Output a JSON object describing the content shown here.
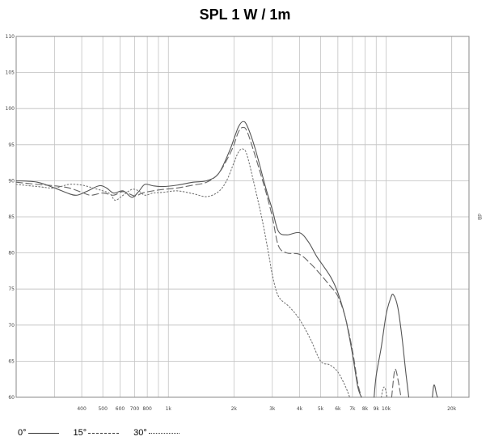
{
  "chart_data": {
    "type": "line",
    "title": "SPL 1 W / 1m",
    "xlabel": "",
    "ylabel": "",
    "side_label": "dB",
    "x_scale": "log",
    "xlim": [
      200,
      24000
    ],
    "ylim": [
      60,
      110
    ],
    "yticks": [
      60,
      65,
      70,
      75,
      80,
      85,
      90,
      95,
      100,
      105,
      110
    ],
    "xticks": [
      {
        "value": 400,
        "label": "400"
      },
      {
        "value": 500,
        "label": "500"
      },
      {
        "value": 600,
        "label": "600"
      },
      {
        "value": 700,
        "label": "700"
      },
      {
        "value": 800,
        "label": "800"
      },
      {
        "value": 1000,
        "label": "1k"
      },
      {
        "value": 2000,
        "label": "2k"
      },
      {
        "value": 3000,
        "label": "3k"
      },
      {
        "value": 4000,
        "label": "4k"
      },
      {
        "value": 5000,
        "label": "5k"
      },
      {
        "value": 6000,
        "label": "6k"
      },
      {
        "value": 7000,
        "label": "7k"
      },
      {
        "value": 8000,
        "label": "8k"
      },
      {
        "value": 9000,
        "label": "9k"
      },
      {
        "value": 10000,
        "label": "10k"
      },
      {
        "value": 20000,
        "label": "20k"
      }
    ],
    "grid": true,
    "series": [
      {
        "name": "0°",
        "style": "solid",
        "color": "#555555",
        "segments": [
          [
            [
              200,
              90.0
            ],
            [
              250,
              89.8
            ],
            [
              300,
              89.0
            ],
            [
              350,
              88.2
            ],
            [
              380,
              88.0
            ],
            [
              420,
              88.5
            ],
            [
              480,
              89.3
            ],
            [
              520,
              89.0
            ],
            [
              560,
              88.3
            ],
            [
              620,
              88.6
            ],
            [
              680,
              87.7
            ],
            [
              730,
              88.5
            ],
            [
              780,
              89.5
            ],
            [
              850,
              89.3
            ],
            [
              950,
              89.2
            ],
            [
              1100,
              89.4
            ],
            [
              1300,
              89.8
            ],
            [
              1500,
              90.0
            ],
            [
              1700,
              91.0
            ],
            [
              1900,
              94.0
            ],
            [
              2000,
              95.8
            ],
            [
              2100,
              97.5
            ],
            [
              2200,
              98.2
            ],
            [
              2300,
              97.6
            ],
            [
              2500,
              94.5
            ],
            [
              2800,
              89.0
            ],
            [
              3000,
              86.0
            ],
            [
              3200,
              83.0
            ],
            [
              3500,
              82.5
            ],
            [
              4000,
              82.8
            ],
            [
              4400,
              81.5
            ],
            [
              4800,
              79.5
            ],
            [
              5200,
              78.0
            ],
            [
              5600,
              76.5
            ],
            [
              6000,
              74.5
            ],
            [
              6500,
              71.0
            ],
            [
              7000,
              66.0
            ],
            [
              7400,
              61.5
            ],
            [
              7700,
              60.0
            ]
          ],
          [
            [
              8800,
              60.0
            ],
            [
              9000,
              63.0
            ],
            [
              9500,
              67.0
            ],
            [
              10000,
              71.5
            ],
            [
              10500,
              73.8
            ],
            [
              10800,
              74.2
            ],
            [
              11300,
              72.5
            ],
            [
              11800,
              68.5
            ],
            [
              12300,
              63.5
            ],
            [
              12700,
              60.0
            ]
          ],
          [
            [
              16300,
              60.0
            ],
            [
              16500,
              61.5
            ],
            [
              16700,
              61.6
            ],
            [
              17000,
              60.5
            ],
            [
              17200,
              60.0
            ]
          ]
        ]
      },
      {
        "name": "15°",
        "style": "dashed",
        "color": "#666666",
        "segments": [
          [
            [
              200,
              89.8
            ],
            [
              250,
              89.5
            ],
            [
              300,
              89.3
            ],
            [
              350,
              89.0
            ],
            [
              400,
              88.4
            ],
            [
              440,
              88.0
            ],
            [
              500,
              88.3
            ],
            [
              560,
              88.0
            ],
            [
              620,
              88.5
            ],
            [
              700,
              87.9
            ],
            [
              760,
              88.3
            ],
            [
              850,
              88.6
            ],
            [
              950,
              88.8
            ],
            [
              1100,
              89.0
            ],
            [
              1300,
              89.4
            ],
            [
              1500,
              89.8
            ],
            [
              1700,
              91.0
            ],
            [
              1900,
              93.5
            ],
            [
              2000,
              95.0
            ],
            [
              2100,
              96.8
            ],
            [
              2200,
              97.4
            ],
            [
              2300,
              96.8
            ],
            [
              2500,
              93.5
            ],
            [
              2800,
              88.5
            ],
            [
              3000,
              85.0
            ],
            [
              3200,
              81.0
            ],
            [
              3500,
              80.0
            ],
            [
              4000,
              79.8
            ],
            [
              4500,
              78.5
            ],
            [
              5000,
              77.0
            ],
            [
              5500,
              75.5
            ],
            [
              6000,
              74.0
            ],
            [
              6500,
              71.0
            ],
            [
              7000,
              66.5
            ],
            [
              7400,
              62.0
            ],
            [
              7700,
              60.0
            ]
          ],
          [
            [
              10600,
              60.0
            ],
            [
              10900,
              63.5
            ],
            [
              11100,
              63.7
            ],
            [
              11400,
              62.0
            ],
            [
              11700,
              60.0
            ]
          ]
        ]
      },
      {
        "name": "30°",
        "style": "dotted",
        "color": "#777777",
        "segments": [
          [
            [
              200,
              89.5
            ],
            [
              250,
              89.2
            ],
            [
              300,
              89.0
            ],
            [
              350,
              89.5
            ],
            [
              400,
              89.4
            ],
            [
              450,
              89.0
            ],
            [
              500,
              88.6
            ],
            [
              540,
              88.2
            ],
            [
              570,
              87.3
            ],
            [
              620,
              88.0
            ],
            [
              680,
              88.8
            ],
            [
              730,
              88.6
            ],
            [
              780,
              88.0
            ],
            [
              850,
              88.3
            ],
            [
              950,
              88.4
            ],
            [
              1100,
              88.6
            ],
            [
              1300,
              88.2
            ],
            [
              1500,
              87.8
            ],
            [
              1700,
              88.5
            ],
            [
              1850,
              90.0
            ],
            [
              2000,
              92.5
            ],
            [
              2100,
              94.0
            ],
            [
              2200,
              94.4
            ],
            [
              2300,
              93.5
            ],
            [
              2500,
              89.0
            ],
            [
              2700,
              84.5
            ],
            [
              2900,
              79.5
            ],
            [
              3000,
              77.0
            ],
            [
              3200,
              74.0
            ],
            [
              3600,
              72.5
            ],
            [
              4000,
              70.8
            ],
            [
              4500,
              68.0
            ],
            [
              5000,
              65.0
            ],
            [
              5500,
              64.5
            ],
            [
              6000,
              63.5
            ],
            [
              6500,
              61.5
            ],
            [
              6800,
              60.0
            ]
          ],
          [
            [
              9500,
              60.0
            ],
            [
              9700,
              61.3
            ],
            [
              9900,
              61.2
            ],
            [
              10100,
              60.0
            ]
          ]
        ]
      }
    ],
    "legend": {
      "position": "bottom-left",
      "items": [
        {
          "label": "0°",
          "style": "solid"
        },
        {
          "label": "15°",
          "style": "dashed"
        },
        {
          "label": "30°",
          "style": "dotted"
        }
      ]
    }
  }
}
